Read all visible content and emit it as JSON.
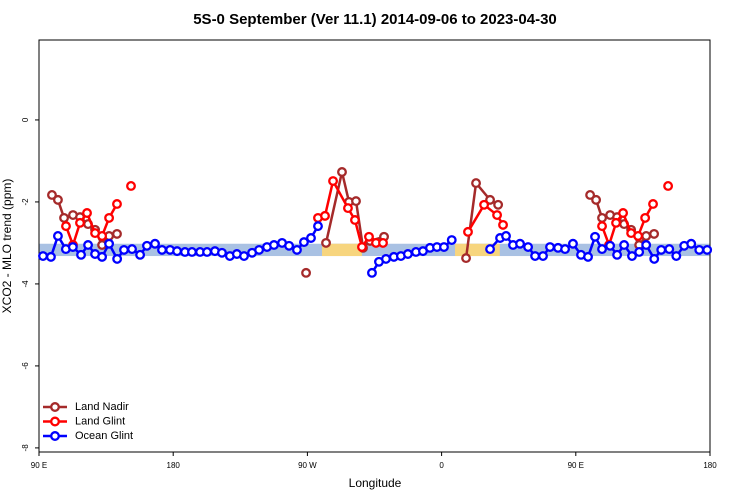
{
  "chart_data": {
    "type": "line",
    "title": "5S-0 September (Ver 11.1)   2014-09-06 to 2023-04-30",
    "xlabel": "Longitude",
    "ylabel": "XCO2 - MLO trend (ppm)",
    "xlim": [
      90,
      540
    ],
    "ylim": [
      -8.1,
      1.95
    ],
    "xticks": [
      {
        "value": 90,
        "label": "90 E"
      },
      {
        "value": 180,
        "label": "180"
      },
      {
        "value": 270,
        "label": "90 W"
      },
      {
        "value": 360,
        "label": "0"
      },
      {
        "value": 450,
        "label": "90 E"
      },
      {
        "value": 540,
        "label": "180"
      }
    ],
    "yticks": [
      0,
      -2,
      -4,
      -6,
      -8
    ],
    "legend": "bottom-left",
    "bands": [
      {
        "x": [
          90,
          540
        ],
        "y": [
          -3.32,
          -3.02
        ],
        "color": "#a9c1e3"
      },
      {
        "x": [
          279.8,
          306.6
        ],
        "y": [
          -3.32,
          -3.02
        ],
        "color": "#f7d57e"
      },
      {
        "x": [
          369,
          399
        ],
        "y": [
          -3.32,
          -3.02
        ],
        "color": "#f7d57e"
      }
    ],
    "series": [
      {
        "name": "Land Nadir",
        "color": "#a52a2a",
        "x": [
          98.7,
          102.7,
          106.8,
          112.8,
          117.5,
          122.9,
          127.6,
          132.3,
          137,
          142.3,
          null,
          269.1,
          null,
          282.5,
          293.2,
          297.9,
          302.6,
          307.3,
          312,
          321.4,
          null,
          376.4,
          383.1,
          392.5,
          397.9,
          null,
          459.6,
          463.6,
          467.6,
          473,
          477.7,
          482.4,
          487.1,
          492.5,
          497.2,
          502.5
        ],
        "values": [
          -1.83,
          -1.95,
          -2.39,
          -2.32,
          -2.37,
          -2.54,
          -2.68,
          -3.05,
          -2.83,
          -2.78,
          null,
          -3.73,
          null,
          -3.0,
          -1.27,
          -2.0,
          -1.98,
          -3.12,
          -2.95,
          -2.85,
          null,
          -3.37,
          -1.54,
          -1.95,
          -2.07,
          null,
          -1.83,
          -1.95,
          -2.39,
          -2.32,
          -2.37,
          -2.54,
          -2.68,
          -3.05,
          -2.83,
          -2.78
        ]
      },
      {
        "name": "Land Glint",
        "color": "#ff0000",
        "x": [
          108.1,
          112.8,
          117.5,
          122.2,
          127.6,
          132.3,
          137,
          142.3,
          null,
          151.7,
          null,
          277.1,
          281.8,
          287.2,
          297.2,
          301.9,
          306.6,
          311.3,
          316,
          320.7,
          null,
          377.7,
          388.5,
          397.2,
          401.2,
          null,
          467.6,
          472.3,
          477,
          481.7,
          487.1,
          491.8,
          496.5,
          501.8,
          null,
          511.9
        ],
        "values": [
          -2.59,
          -3.05,
          -2.51,
          -2.27,
          -2.76,
          -2.83,
          -2.39,
          -2.05,
          null,
          -1.61,
          null,
          -2.39,
          -2.34,
          -1.49,
          -2.15,
          -2.44,
          -3.1,
          -2.85,
          -3.0,
          -3.0,
          null,
          -2.73,
          -2.07,
          -2.32,
          -2.56,
          null,
          -2.59,
          -3.05,
          -2.51,
          -2.27,
          -2.76,
          -2.83,
          -2.39,
          -2.05,
          null,
          -1.61
        ]
      },
      {
        "name": "Ocean Glint",
        "color": "#0000ff",
        "x": [
          92.7,
          98,
          102.7,
          108,
          112.7,
          118.2,
          122.9,
          127.6,
          132.3,
          137,
          142.4,
          147,
          152.4,
          157.8,
          162.4,
          167.8,
          172.5,
          177.9,
          182.6,
          187.9,
          192.6,
          198,
          202.7,
          208,
          212.7,
          218,
          222.7,
          227.5,
          232.9,
          237.6,
          242.9,
          247.6,
          253,
          257.7,
          263,
          267.7,
          272.4,
          277.1,
          null,
          313.3,
          318,
          322.7,
          328,
          332.7,
          337.4,
          342.8,
          347.5,
          352.2,
          356.9,
          361.6,
          366.8,
          null,
          392.5,
          399.2,
          403.2,
          407.9,
          412.6,
          418,
          422.7,
          428,
          432.7,
          438.1,
          442.8,
          448.1,
          453.5,
          458.2,
          462.9,
          467.6,
          473,
          477.7,
          482.4,
          487.7,
          492.5,
          497.2,
          502.6,
          507.3,
          512.7,
          517.4,
          522.7,
          527.4,
          532.8,
          538.1
        ],
        "values": [
          -3.32,
          -3.34,
          -2.83,
          -3.15,
          -3.1,
          -3.29,
          -3.05,
          -3.27,
          -3.34,
          -3.02,
          -3.39,
          -3.17,
          -3.15,
          -3.29,
          -3.07,
          -3.02,
          -3.17,
          -3.17,
          -3.2,
          -3.22,
          -3.22,
          -3.22,
          -3.22,
          -3.2,
          -3.24,
          -3.32,
          -3.27,
          -3.32,
          -3.24,
          -3.17,
          -3.1,
          -3.05,
          -3.0,
          -3.07,
          -3.17,
          -2.98,
          -2.88,
          -2.59,
          null,
          -3.73,
          -3.46,
          -3.39,
          -3.34,
          -3.32,
          -3.27,
          -3.22,
          -3.2,
          -3.12,
          -3.1,
          -3.1,
          -2.93,
          null,
          -3.15,
          -2.88,
          -2.83,
          -3.05,
          -3.02,
          -3.1,
          -3.32,
          -3.32,
          -3.1,
          -3.12,
          -3.15,
          -3.02,
          -3.29,
          -3.34,
          -2.85,
          -3.15,
          -3.07,
          -3.29,
          -3.05,
          -3.32,
          -3.22,
          -3.05,
          -3.39,
          -3.17,
          -3.15,
          -3.32,
          -3.07,
          -3.02,
          -3.17,
          -3.17
        ]
      }
    ]
  }
}
